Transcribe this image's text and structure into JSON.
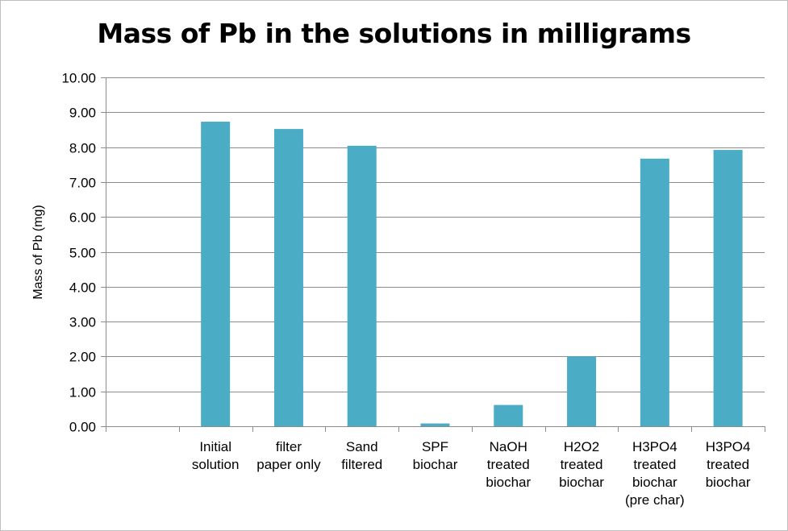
{
  "chart_data": {
    "type": "bar",
    "title": "Mass of Pb in the solutions in milligrams",
    "xlabel": "",
    "ylabel": "Mass of Pb (mg)",
    "ylim": [
      0,
      10
    ],
    "y_ticks": [
      "0.00",
      "1.00",
      "2.00",
      "3.00",
      "4.00",
      "5.00",
      "6.00",
      "7.00",
      "8.00",
      "9.00",
      "10.00"
    ],
    "grid": true,
    "legend": "none",
    "bar_color": "#4bacc6",
    "categories": [
      [
        ""
      ],
      [
        "Initial",
        "solution"
      ],
      [
        "filter",
        "paper only"
      ],
      [
        "Sand",
        "filtered"
      ],
      [
        "SPF",
        "biochar"
      ],
      [
        "NaOH",
        "treated",
        "biochar"
      ],
      [
        "H2O2",
        "treated",
        "biochar"
      ],
      [
        "H3PO4",
        "treated",
        "biochar",
        "(pre char)"
      ],
      [
        "H3PO4",
        "treated",
        "biochar"
      ]
    ],
    "values": [
      null,
      8.73,
      8.52,
      8.04,
      0.08,
      0.61,
      2.0,
      7.67,
      7.92
    ]
  }
}
